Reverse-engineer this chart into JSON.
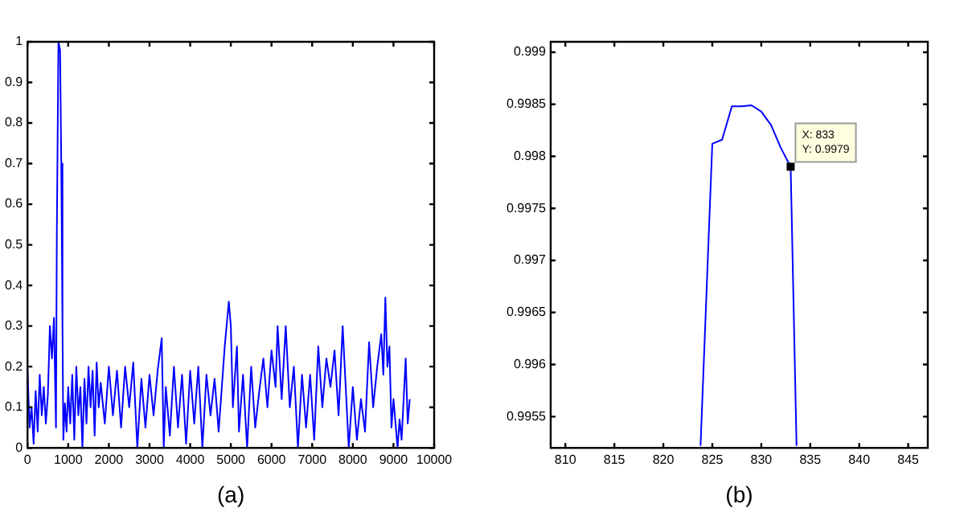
{
  "chart_data": [
    {
      "type": "line",
      "xlabel": "(a)",
      "xlim": [
        0,
        10000
      ],
      "xticks": [
        0,
        1000,
        2000,
        3000,
        4000,
        5000,
        6000,
        7000,
        8000,
        9000,
        10000
      ],
      "ylim": [
        0,
        1
      ],
      "yticks": [
        0,
        0.1,
        0.2,
        0.3,
        0.4,
        0.5,
        0.6,
        0.7,
        0.8,
        0.9,
        1
      ],
      "grid": false,
      "legend": false,
      "marker": "none",
      "series": [
        {
          "color": "#0000ff",
          "x": [
            0,
            50,
            100,
            150,
            200,
            250,
            300,
            350,
            400,
            450,
            500,
            550,
            600,
            650,
            700,
            720,
            760,
            800,
            830,
            860,
            880,
            920,
            960,
            1000,
            1050,
            1100,
            1150,
            1200,
            1250,
            1300,
            1350,
            1400,
            1450,
            1500,
            1550,
            1600,
            1650,
            1700,
            1750,
            1800,
            1900,
            2000,
            2100,
            2200,
            2300,
            2400,
            2500,
            2600,
            2700,
            2800,
            2900,
            3000,
            3100,
            3200,
            3300,
            3350,
            3400,
            3500,
            3600,
            3700,
            3800,
            3900,
            4000,
            4100,
            4200,
            4300,
            4400,
            4500,
            4600,
            4700,
            4800,
            4850,
            4950,
            5000,
            5050,
            5150,
            5200,
            5300,
            5400,
            5500,
            5600,
            5700,
            5800,
            5900,
            6000,
            6100,
            6150,
            6250,
            6350,
            6450,
            6550,
            6650,
            6750,
            6850,
            6950,
            7050,
            7150,
            7250,
            7350,
            7450,
            7550,
            7650,
            7750,
            7800,
            7900,
            8000,
            8100,
            8200,
            8300,
            8400,
            8500,
            8600,
            8700,
            8750,
            8800,
            8850,
            8900,
            8950,
            9000,
            9100,
            9150,
            9200,
            9250,
            9300,
            9350,
            9400
          ],
          "values": [
            0.19,
            0.05,
            0.1,
            0.01,
            0.14,
            0.04,
            0.18,
            0.08,
            0.15,
            0.06,
            0.13,
            0.3,
            0.22,
            0.32,
            0.05,
            0.52,
            1.0,
            0.98,
            0.7,
            0.3,
            0.02,
            0.11,
            0.04,
            0.15,
            0.06,
            0.18,
            0.02,
            0.2,
            0.08,
            0.15,
            0.0,
            0.17,
            0.06,
            0.2,
            0.1,
            0.19,
            0.03,
            0.21,
            0.1,
            0.16,
            0.06,
            0.2,
            0.08,
            0.19,
            0.05,
            0.2,
            0.1,
            0.21,
            0.0,
            0.17,
            0.05,
            0.18,
            0.08,
            0.19,
            0.27,
            0.0,
            0.15,
            0.03,
            0.2,
            0.05,
            0.18,
            0.01,
            0.19,
            0.06,
            0.2,
            0.0,
            0.18,
            0.08,
            0.17,
            0.04,
            0.18,
            0.25,
            0.36,
            0.3,
            0.1,
            0.25,
            0.04,
            0.18,
            0.0,
            0.2,
            0.05,
            0.14,
            0.22,
            0.1,
            0.24,
            0.15,
            0.3,
            0.12,
            0.3,
            0.1,
            0.2,
            0.0,
            0.18,
            0.05,
            0.18,
            0.02,
            0.25,
            0.1,
            0.22,
            0.15,
            0.24,
            0.08,
            0.3,
            0.2,
            0.0,
            0.15,
            0.02,
            0.12,
            0.04,
            0.26,
            0.1,
            0.2,
            0.28,
            0.18,
            0.37,
            0.2,
            0.25,
            0.05,
            0.12,
            0.0,
            0.07,
            0.02,
            0.12,
            0.22,
            0.06,
            0.12
          ]
        }
      ]
    },
    {
      "type": "line",
      "xlabel": "(b)",
      "xlim": [
        808.5,
        847
      ],
      "xticks": [
        810,
        815,
        820,
        825,
        830,
        835,
        840,
        845
      ],
      "ylim": [
        0.9952,
        0.9991
      ],
      "yticks": [
        0.9955,
        0.996,
        0.9965,
        0.997,
        0.9975,
        0.998,
        0.9985,
        0.999
      ],
      "grid": false,
      "legend": false,
      "marker": "none",
      "annotations": [
        {
          "text": "X: 833\nY: 0.9979",
          "x": 833,
          "y": 0.9979
        }
      ],
      "series": [
        {
          "color": "#0000ff",
          "x": [
            823.8,
            825,
            826,
            827,
            828,
            829,
            830,
            831,
            832,
            833,
            833.6
          ],
          "values": [
            0.99522,
            0.99812,
            0.99816,
            0.99848,
            0.99848,
            0.99849,
            0.99843,
            0.9983,
            0.99808,
            0.9979,
            0.99522
          ]
        }
      ]
    }
  ]
}
